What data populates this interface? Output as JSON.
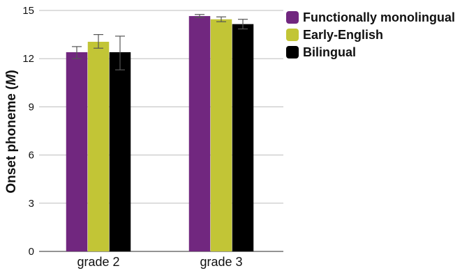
{
  "chart_data": {
    "type": "bar",
    "ylabel_main": "Onset phoneme (",
    "ylabel_italic": "M",
    "ylabel_close": ")",
    "categories": [
      "grade 2",
      "grade 3"
    ],
    "ylim": [
      0,
      15
    ],
    "yticks": [
      "0",
      "3",
      "6",
      "9",
      "12",
      "15"
    ],
    "grid": true,
    "legend_position": "top-right",
    "series": [
      {
        "name": "Functionally monolingual",
        "color": "#71277f",
        "values": [
          12.4,
          14.65
        ],
        "err_low": [
          12.0,
          14.55
        ],
        "err_high": [
          12.75,
          14.75
        ]
      },
      {
        "name": "Early-English",
        "color": "#c2c536",
        "values": [
          13.05,
          14.45
        ],
        "err_low": [
          12.65,
          14.3
        ],
        "err_high": [
          13.5,
          14.6
        ]
      },
      {
        "name": "Bilingual",
        "color": "#000000",
        "values": [
          12.4,
          14.15
        ],
        "err_low": [
          11.3,
          13.85
        ],
        "err_high": [
          13.4,
          14.45
        ]
      }
    ]
  }
}
